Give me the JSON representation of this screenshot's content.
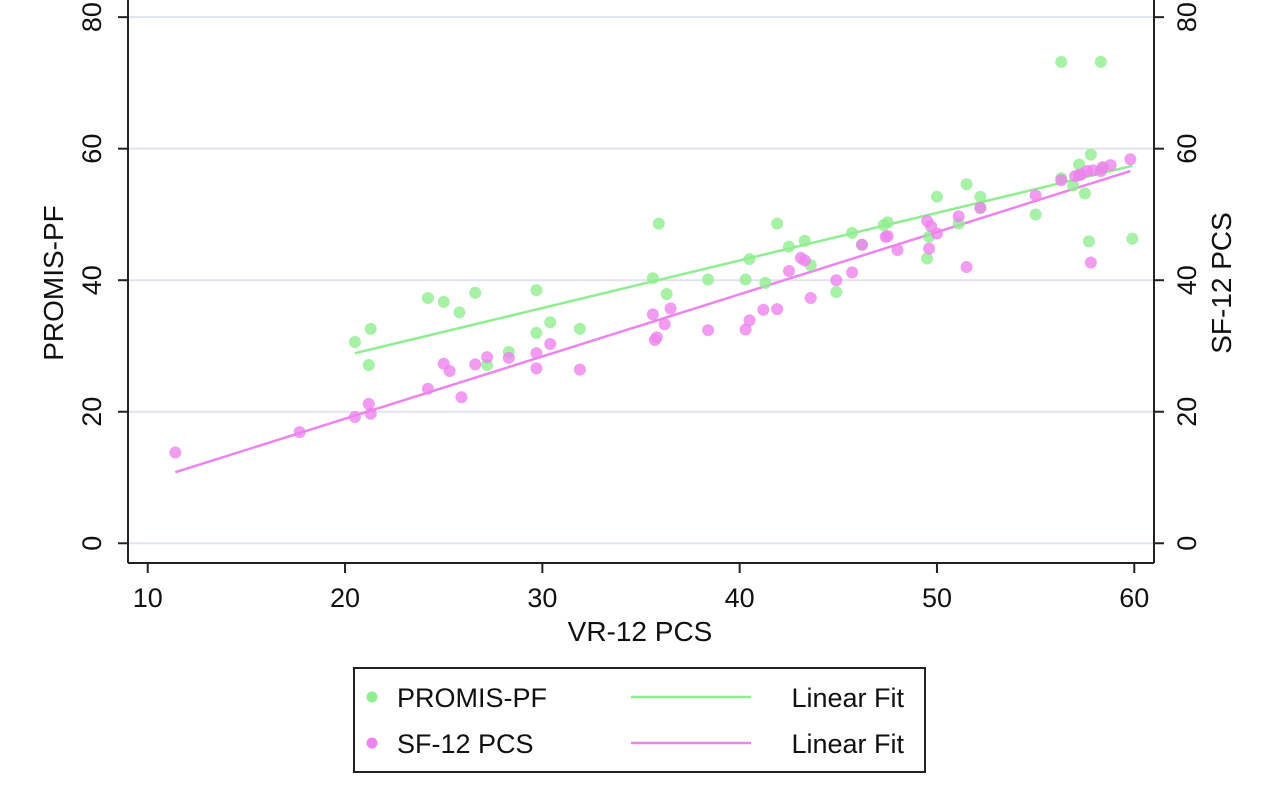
{
  "chart_data": {
    "type": "scatter",
    "title": "",
    "xlabel": "VR-12 PCS",
    "ylabel": "PROMIS-PF",
    "ylabel_right": "SF-12 PCS",
    "xlim": [
      9,
      61
    ],
    "ylim": [
      -3,
      82
    ],
    "x_ticks": [
      10,
      20,
      30,
      40,
      50,
      60
    ],
    "y_ticks": [
      0,
      20,
      40,
      60,
      80
    ],
    "grid": "horizontal",
    "legend_position": "bottom",
    "series": [
      {
        "name": "PROMIS-PF",
        "kind": "scatter",
        "color": "#90ee90",
        "points": [
          [
            20.5,
            30.6
          ],
          [
            21.3,
            32.6
          ],
          [
            21.2,
            27.1
          ],
          [
            24.2,
            37.3
          ],
          [
            25.0,
            36.7
          ],
          [
            25.8,
            35.1
          ],
          [
            26.6,
            38.1
          ],
          [
            27.2,
            27.1
          ],
          [
            28.3,
            29.1
          ],
          [
            29.7,
            38.5
          ],
          [
            29.7,
            32.0
          ],
          [
            30.4,
            33.6
          ],
          [
            31.9,
            32.6
          ],
          [
            35.6,
            40.3
          ],
          [
            35.9,
            48.6
          ],
          [
            36.3,
            37.9
          ],
          [
            38.4,
            40.1
          ],
          [
            40.3,
            40.1
          ],
          [
            40.5,
            43.2
          ],
          [
            41.3,
            39.6
          ],
          [
            41.9,
            48.6
          ],
          [
            42.5,
            45.1
          ],
          [
            43.3,
            46.0
          ],
          [
            43.6,
            42.3
          ],
          [
            44.9,
            38.2
          ],
          [
            45.7,
            47.2
          ],
          [
            46.2,
            45.4
          ],
          [
            47.3,
            48.4
          ],
          [
            47.5,
            48.8
          ],
          [
            49.5,
            43.3
          ],
          [
            49.6,
            46.6
          ],
          [
            50.0,
            52.7
          ],
          [
            51.1,
            48.6
          ],
          [
            51.5,
            54.6
          ],
          [
            52.2,
            52.7
          ],
          [
            52.2,
            51.0
          ],
          [
            55.0,
            50.0
          ],
          [
            56.3,
            73.2
          ],
          [
            56.3,
            55.5
          ],
          [
            56.9,
            54.4
          ],
          [
            57.2,
            57.6
          ],
          [
            57.5,
            53.2
          ],
          [
            57.7,
            45.9
          ],
          [
            57.8,
            59.1
          ],
          [
            58.3,
            73.2
          ],
          [
            58.4,
            57.0
          ],
          [
            59.9,
            46.3
          ]
        ]
      },
      {
        "name": "SF-12 PCS",
        "kind": "scatter",
        "color": "#ee82ee",
        "points": [
          [
            11.4,
            13.8
          ],
          [
            17.7,
            16.9
          ],
          [
            20.5,
            19.2
          ],
          [
            21.2,
            21.2
          ],
          [
            21.3,
            19.7
          ],
          [
            24.2,
            23.5
          ],
          [
            25.0,
            27.3
          ],
          [
            25.3,
            26.2
          ],
          [
            25.9,
            22.2
          ],
          [
            26.6,
            27.2
          ],
          [
            27.2,
            28.3
          ],
          [
            28.3,
            28.2
          ],
          [
            29.7,
            28.9
          ],
          [
            29.7,
            26.6
          ],
          [
            30.4,
            30.3
          ],
          [
            31.9,
            26.4
          ],
          [
            35.6,
            34.8
          ],
          [
            35.7,
            30.9
          ],
          [
            35.8,
            31.3
          ],
          [
            36.2,
            33.3
          ],
          [
            36.5,
            35.7
          ],
          [
            38.4,
            32.4
          ],
          [
            40.3,
            32.5
          ],
          [
            40.5,
            33.9
          ],
          [
            41.2,
            35.5
          ],
          [
            41.9,
            35.6
          ],
          [
            42.5,
            41.4
          ],
          [
            43.1,
            43.4
          ],
          [
            43.3,
            43.0
          ],
          [
            43.6,
            37.3
          ],
          [
            44.9,
            40.0
          ],
          [
            45.7,
            41.2
          ],
          [
            46.2,
            45.4
          ],
          [
            47.4,
            46.6
          ],
          [
            47.5,
            46.7
          ],
          [
            48.0,
            44.6
          ],
          [
            49.5,
            49.0
          ],
          [
            49.6,
            44.8
          ],
          [
            49.7,
            48.2
          ],
          [
            50.0,
            47.1
          ],
          [
            51.1,
            49.7
          ],
          [
            51.5,
            42.0
          ],
          [
            52.2,
            51.0
          ],
          [
            55.0,
            52.9
          ],
          [
            56.3,
            55.2
          ],
          [
            57.0,
            55.8
          ],
          [
            57.2,
            56.0
          ],
          [
            57.3,
            56.1
          ],
          [
            57.6,
            56.6
          ],
          [
            57.8,
            42.7
          ],
          [
            57.9,
            56.7
          ],
          [
            58.3,
            56.6
          ],
          [
            58.4,
            57.2
          ],
          [
            58.8,
            57.5
          ],
          [
            59.8,
            58.4
          ]
        ]
      },
      {
        "name": "Linear Fit",
        "kind": "line",
        "color": "#90ee90",
        "points": [
          [
            20.5,
            28.9
          ],
          [
            59.9,
            57.4
          ]
        ]
      },
      {
        "name": "Linear Fit",
        "kind": "line",
        "color": "#ee82ee",
        "points": [
          [
            11.4,
            10.8
          ],
          [
            59.8,
            56.6
          ]
        ]
      }
    ],
    "legend": [
      {
        "label": "PROMIS-PF",
        "marker": "dot",
        "color": "#90ee90"
      },
      {
        "label": "Linear Fit",
        "marker": "line",
        "color": "#90ee90"
      },
      {
        "label": "SF-12 PCS",
        "marker": "dot",
        "color": "#ee82ee"
      },
      {
        "label": "Linear Fit",
        "marker": "line",
        "color": "#ee82ee"
      }
    ],
    "colors": {
      "axis": "#222222",
      "grid": "#dfe4ee"
    }
  }
}
